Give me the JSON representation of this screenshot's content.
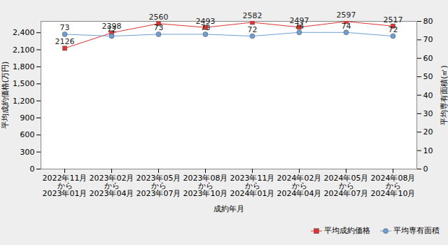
{
  "chart_data": {
    "type": "line",
    "xlabel": "成約年月",
    "ylabel": "平均成約価格(万円)",
    "y2label": "平均専有面積(㎡)",
    "categories": [
      "2022年11月\nから\n2023年01月",
      "2023年02月\nから\n2023年04月",
      "2023年05月\nから\n2023年07月",
      "2023年08月\nから\n2023年10月",
      "2023年11月\nから\n2024年01月",
      "2024年02月\nから\n2024年04月",
      "2024年05月\nから\n2024年07月",
      "2024年08月\nから\n2024年10月"
    ],
    "series": [
      {
        "name": "平均成約価格",
        "color": "#e03232",
        "marker": "square",
        "axis": "y",
        "values": [
          2126,
          2398,
          2560,
          2493,
          2582,
          2497,
          2597,
          2517
        ]
      },
      {
        "name": "平均専有面積",
        "color": "#6e9fd2",
        "marker": "circle",
        "axis": "y2",
        "values": [
          73,
          72,
          73,
          73,
          72,
          74,
          74,
          72
        ]
      }
    ],
    "ylim": [
      0,
      2600
    ],
    "yticks": [
      0,
      300,
      600,
      900,
      1200,
      1500,
      1800,
      2100,
      2400
    ],
    "y2lim": [
      0,
      80
    ],
    "y2ticks": [
      0,
      10,
      20,
      30,
      40,
      50,
      60,
      70,
      80
    ],
    "data_labels": true,
    "grid": false,
    "legend": "bottom-right"
  }
}
